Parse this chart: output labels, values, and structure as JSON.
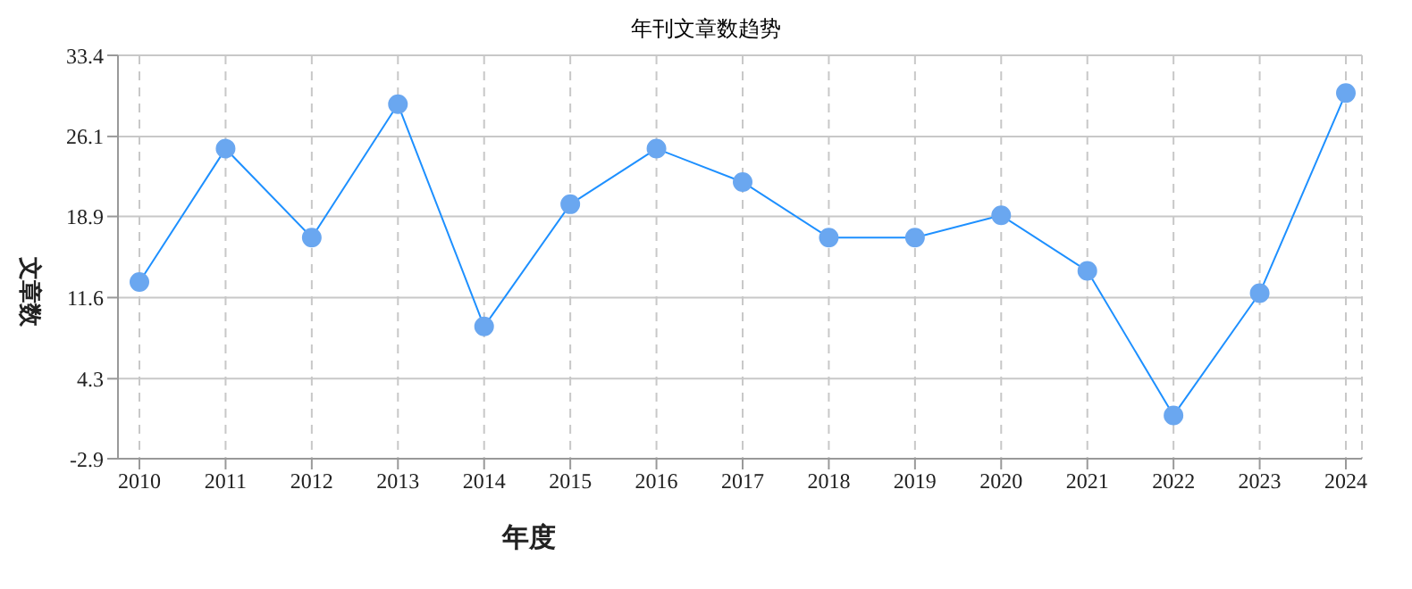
{
  "chart_data": {
    "type": "line",
    "title": "年刊文章数趋势",
    "xlabel": "年度",
    "ylabel": "文章数",
    "categories": [
      "2010",
      "2011",
      "2012",
      "2013",
      "2014",
      "2015",
      "2016",
      "2017",
      "2018",
      "2019",
      "2020",
      "2021",
      "2022",
      "2023",
      "2024"
    ],
    "series": [
      {
        "color": "#1e90ff",
        "values": [
          13,
          25,
          17,
          29,
          9,
          20,
          25,
          22,
          17,
          17,
          19,
          14,
          1,
          12,
          30
        ]
      }
    ],
    "ylim": [
      -2.9,
      33.4
    ],
    "yticks": [
      -2.9,
      4.3,
      11.6,
      18.9,
      26.1,
      33.4
    ],
    "grid": true,
    "legend": false,
    "marker": "circle",
    "line_style": "solid"
  }
}
